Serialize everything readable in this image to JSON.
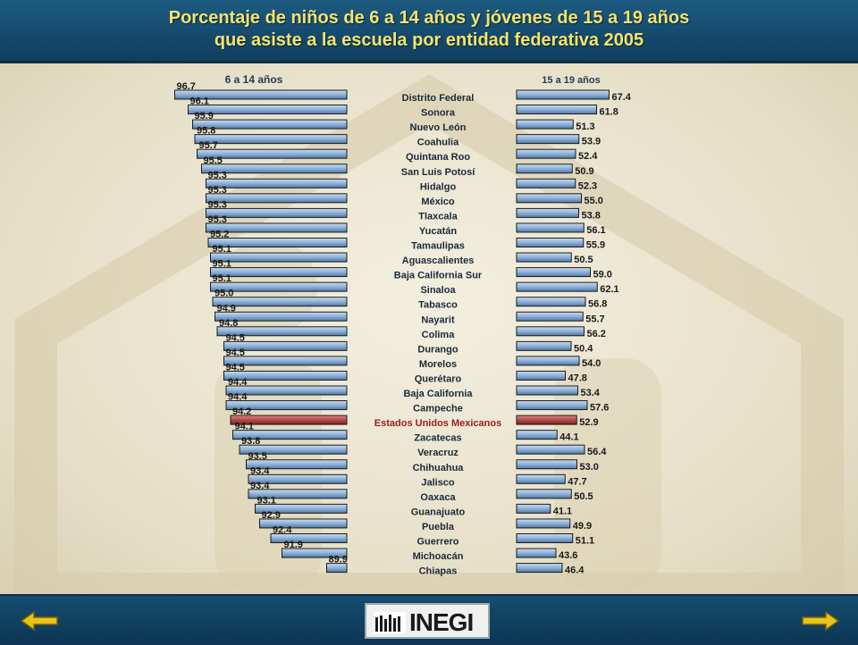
{
  "header": {
    "title_line1": "Porcentaje de niños de 6 a 14 años y jóvenes de 15 a 19 años",
    "title_line2": "que asiste a la escuela por entidad federativa 2005"
  },
  "footer": {
    "logo_text": "INEGI",
    "back_icon": "arrow-left-icon",
    "forward_icon": "arrow-right-icon"
  },
  "colors": {
    "bar_fill": "#8fb1d7",
    "bar_fill_highlight": "#b34a4a",
    "label_highlight": "#9b1c1c"
  },
  "chart_data": {
    "type": "bar",
    "highlight": "Estados Unidos Mexicanos",
    "categories": [
      "Distrito Federal",
      "Sonora",
      "Nuevo León",
      "Coahulia",
      "Quintana Roo",
      "San Luis Potosí",
      "Hidalgo",
      "México",
      "Tlaxcala",
      "Yucatán",
      "Tamaulipas",
      "Aguascalientes",
      "Baja California Sur",
      "Sinaloa",
      "Tabasco",
      "Nayarit",
      "Colima",
      "Durango",
      "Morelos",
      "Querétaro",
      "Baja California",
      "Campeche",
      "Estados Unidos Mexicanos",
      "Zacatecas",
      "Veracruz",
      "Chihuahua",
      "Jalisco",
      "Oaxaca",
      "Guanajuato",
      "Puebla",
      "Guerrero",
      "Michoacán",
      "Chiapas"
    ],
    "series": [
      {
        "name": "6 a 14 años",
        "direction": "left",
        "labels": [
          "96.7",
          "96.1",
          "95.9",
          "95.8",
          "95.7",
          "95.5",
          "95.3",
          "95.3",
          "95.3",
          "95.3",
          "95.2",
          "95.1",
          "95.1",
          "95.1",
          "95.0",
          "94.9",
          "94.8",
          "94.5",
          "94.5",
          "94.5",
          "94.4",
          "94.4",
          "94.2",
          "94.1",
          "93.8",
          "93.5",
          "93.4",
          "93.4",
          "93.1",
          "92.9",
          "92.4",
          "91.9",
          "89.9"
        ],
        "values": [
          96.7,
          96.1,
          95.9,
          95.8,
          95.7,
          95.5,
          95.3,
          95.3,
          95.3,
          95.3,
          95.2,
          95.1,
          95.1,
          95.1,
          95.0,
          94.9,
          94.8,
          94.5,
          94.5,
          94.5,
          94.4,
          94.4,
          94.2,
          94.1,
          93.8,
          93.5,
          93.4,
          93.4,
          93.1,
          92.9,
          92.4,
          91.9,
          89.9
        ]
      },
      {
        "name": "15 a 19 años",
        "direction": "right",
        "labels": [
          "67.4",
          "61.8",
          "51.3",
          "53.9",
          "52.4",
          "50.9",
          "52.3",
          "55.0",
          "53.8",
          "56.1",
          "55.9",
          "50.5",
          "59.0",
          "62.1",
          "56.8",
          "55.7",
          "56.2",
          "50.4",
          "54.0",
          "47.8",
          "53.4",
          "57.6",
          "52.9",
          "44.1",
          "56.4",
          "53.0",
          "47.7",
          "50.5",
          "41.1",
          "49.9",
          "51.1",
          "43.6",
          "46.4"
        ],
        "values": [
          67.4,
          61.8,
          51.3,
          53.9,
          52.4,
          50.9,
          52.3,
          55.0,
          53.8,
          56.1,
          55.9,
          50.5,
          59.0,
          62.1,
          56.8,
          55.7,
          56.2,
          50.4,
          54.0,
          47.8,
          53.4,
          57.6,
          52.9,
          44.1,
          56.4,
          53.0,
          47.7,
          50.5,
          41.1,
          49.9,
          51.1,
          43.6,
          46.4
        ]
      }
    ]
  }
}
